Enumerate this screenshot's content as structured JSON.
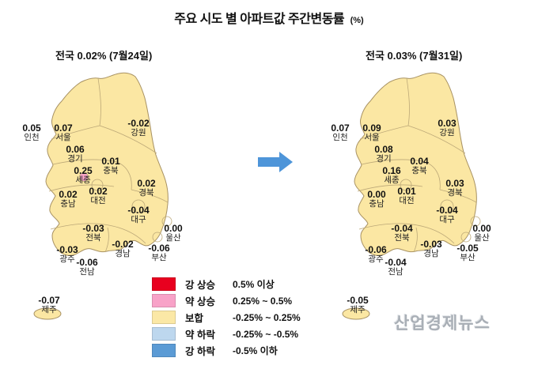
{
  "title": {
    "main": "주요 시도 별 아파트값 주간변동률",
    "unit": "(%)"
  },
  "watermark": "산업경제뉴스",
  "arrow_color": "#4E95D9",
  "maps": [
    {
      "subtitle": "전국 0.02% (7월24일)",
      "sejong_color": "#F7A3C6",
      "regions": [
        {
          "key": "incheon",
          "name": "인천",
          "value": "0.05"
        },
        {
          "key": "seoul",
          "name": "서울",
          "value": "0.07"
        },
        {
          "key": "gyeonggi",
          "name": "경기",
          "value": "0.06"
        },
        {
          "key": "gangwon",
          "name": "강원",
          "value": "-0.02"
        },
        {
          "key": "chungbuk",
          "name": "충북",
          "value": "0.01"
        },
        {
          "key": "sejong",
          "name": "세종",
          "value": "0.25"
        },
        {
          "key": "daejeon",
          "name": "대전",
          "value": "0.02"
        },
        {
          "key": "chungnam",
          "name": "충남",
          "value": "0.02"
        },
        {
          "key": "gyeongbuk",
          "name": "경북",
          "value": "0.02"
        },
        {
          "key": "daegu",
          "name": "대구",
          "value": "-0.04"
        },
        {
          "key": "jeonbuk",
          "name": "전북",
          "value": "-0.03"
        },
        {
          "key": "ulsan",
          "name": "울산",
          "value": "0.00"
        },
        {
          "key": "gyeongnam",
          "name": "경남",
          "value": "-0.02"
        },
        {
          "key": "busan",
          "name": "부산",
          "value": "-0.06"
        },
        {
          "key": "gwangju",
          "name": "광주",
          "value": "-0.03"
        },
        {
          "key": "jeonnam",
          "name": "전남",
          "value": "-0.06"
        },
        {
          "key": "jeju",
          "name": "제주",
          "value": "-0.07"
        }
      ]
    },
    {
      "subtitle": "전국 0.03% (7월31일)",
      "sejong_color": "#FBE7A3",
      "regions": [
        {
          "key": "incheon",
          "name": "인천",
          "value": "0.07"
        },
        {
          "key": "seoul",
          "name": "서울",
          "value": "0.09"
        },
        {
          "key": "gyeonggi",
          "name": "경기",
          "value": "0.08"
        },
        {
          "key": "gangwon",
          "name": "강원",
          "value": "0.03"
        },
        {
          "key": "chungbuk",
          "name": "충북",
          "value": "0.04"
        },
        {
          "key": "sejong",
          "name": "세종",
          "value": "0.16"
        },
        {
          "key": "daejeon",
          "name": "대전",
          "value": "0.01"
        },
        {
          "key": "chungnam",
          "name": "충남",
          "value": "0.00"
        },
        {
          "key": "gyeongbuk",
          "name": "경북",
          "value": "0.03"
        },
        {
          "key": "daegu",
          "name": "대구",
          "value": "-0.04"
        },
        {
          "key": "jeonbuk",
          "name": "전북",
          "value": "-0.04"
        },
        {
          "key": "ulsan",
          "name": "울산",
          "value": "0.00"
        },
        {
          "key": "gyeongnam",
          "name": "경남",
          "value": "-0.03"
        },
        {
          "key": "busan",
          "name": "부산",
          "value": "-0.05"
        },
        {
          "key": "gwangju",
          "name": "광주",
          "value": "-0.06"
        },
        {
          "key": "jeonnam",
          "name": "전남",
          "value": "-0.04"
        },
        {
          "key": "jeju",
          "name": "제주",
          "value": "-0.05"
        }
      ]
    }
  ],
  "legend": {
    "items": [
      {
        "label": "강 상승",
        "range": "0.5% 이상",
        "color": "#E8001F"
      },
      {
        "label": "약 상승",
        "range": "0.25% ~ 0.5%",
        "color": "#F8A2C8"
      },
      {
        "label": "보합",
        "range": "-0.25% ~ 0.25%",
        "color": "#FBE8A6"
      },
      {
        "label": "약 하락",
        "range": "-0.25% ~ -0.5%",
        "color": "#BDD7EE"
      },
      {
        "label": "강 하락",
        "range": "-0.5% 이하",
        "color": "#5B9BD5"
      }
    ]
  },
  "chart_data": {
    "type": "heatmap",
    "title": "주요 시도 별 아파트값 주간변동률 (%)",
    "categories": [
      "인천",
      "서울",
      "경기",
      "강원",
      "충북",
      "세종",
      "대전",
      "충남",
      "경북",
      "대구",
      "전북",
      "울산",
      "경남",
      "부산",
      "광주",
      "전남",
      "제주"
    ],
    "series": [
      {
        "name": "전국 0.02% (7월24일)",
        "values": [
          0.05,
          0.07,
          0.06,
          -0.02,
          0.01,
          0.25,
          0.02,
          0.02,
          0.02,
          -0.04,
          -0.03,
          0.0,
          -0.02,
          -0.06,
          -0.03,
          -0.06,
          -0.07
        ]
      },
      {
        "name": "전국 0.03% (7월31일)",
        "values": [
          0.07,
          0.09,
          0.08,
          0.03,
          0.04,
          0.16,
          0.01,
          0.0,
          0.03,
          -0.04,
          -0.04,
          0.0,
          -0.03,
          -0.05,
          -0.06,
          -0.04,
          -0.05
        ]
      }
    ],
    "legend_position": "bottom-center",
    "bins": [
      {
        "label": "강 상승",
        "range": "0.5% 이상",
        "color": "#E8001F"
      },
      {
        "label": "약 상승",
        "range": "0.25% ~ 0.5%",
        "color": "#F8A2C8"
      },
      {
        "label": "보합",
        "range": "-0.25% ~ 0.25%",
        "color": "#FBE8A6"
      },
      {
        "label": "약 하락",
        "range": "-0.25% ~ -0.5%",
        "color": "#BDD7EE"
      },
      {
        "label": "강 하락",
        "range": "-0.5% 이하",
        "color": "#5B9BD5"
      }
    ]
  }
}
